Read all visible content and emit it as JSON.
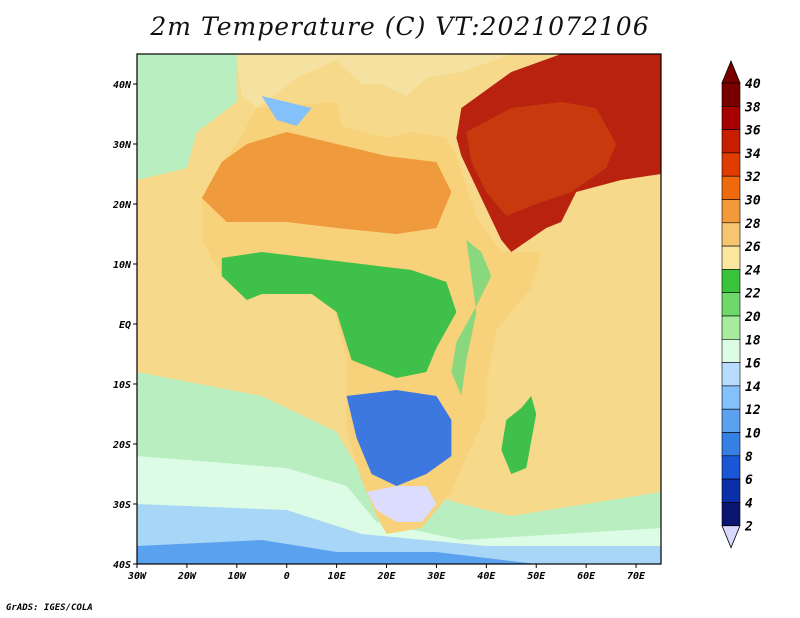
{
  "title": "2m Temperature (C) VT:2021072106",
  "credit": "GrADS: IGES/COLA",
  "lon_labels": [
    "30W",
    "20W",
    "10W",
    "0",
    "10E",
    "20E",
    "30E",
    "40E",
    "50E",
    "60E",
    "70E"
  ],
  "lat_labels": [
    "40N",
    "30N",
    "20N",
    "10N",
    "EQ",
    "10S",
    "20S",
    "30S",
    "40S"
  ],
  "colorbar": {
    "labels": [
      "40",
      "38",
      "36",
      "34",
      "32",
      "30",
      "28",
      "26",
      "24",
      "22",
      "20",
      "18",
      "16",
      "14",
      "12",
      "10",
      "8",
      "6",
      "4",
      "2"
    ],
    "colors": [
      "#7a0000",
      "#a80000",
      "#c81e00",
      "#e03c00",
      "#ee6a0c",
      "#f29a3a",
      "#f7c470",
      "#fbe6a0",
      "#39c43c",
      "#6ed86a",
      "#a6ec9c",
      "#dcfce6",
      "#b8dcff",
      "#84c0fa",
      "#5aa2f0",
      "#3680e4",
      "#1a56d6",
      "#0c2fa8",
      "#0a1670",
      "#d9d9ff"
    ],
    "top_arrow_color": "#7a0000",
    "bottom_arrow_color": "#d9d9ff"
  },
  "map": {
    "lon_range": [
      -30,
      75
    ],
    "lat_range": [
      -40,
      45
    ],
    "ocean_color": "#f6d98a",
    "cool_ocean_colors": [
      "#b8eec0",
      "#dcfce6",
      "#a8d6f6",
      "#5aa2f0"
    ],
    "land_colors": {
      "sahara": "#ef9a3c",
      "arabia": "#b8220e",
      "sahel": "#f8d27a",
      "tropics": "#3fc04a",
      "highlands": "#8ad87e",
      "south_plateau": "#3c78e0",
      "south_cold": "#dcdcff",
      "mediterranean": "#f6e2a0"
    }
  }
}
